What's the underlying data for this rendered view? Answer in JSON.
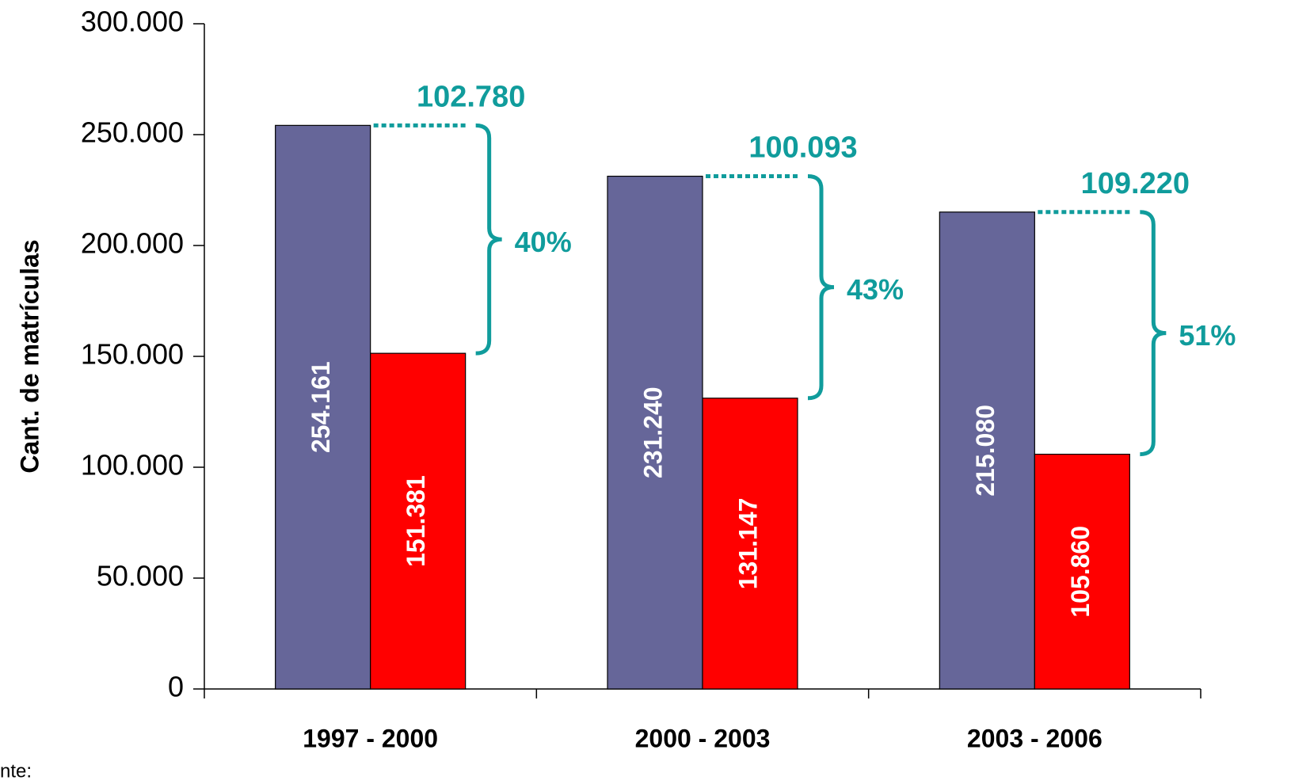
{
  "chart_data": {
    "type": "bar",
    "y_label": "Cant. de matrículas",
    "categories": [
      "1997 - 2000",
      "2000 - 2003",
      "2003 - 2006"
    ],
    "series": [
      {
        "color": "#666699",
        "values": [
          254161,
          231240,
          215080
        ],
        "value_labels": [
          "254.161",
          "231.240",
          "215.080"
        ]
      },
      {
        "color": "#ff0000",
        "values": [
          151381,
          131147,
          105860
        ],
        "value_labels": [
          "151.381",
          "131.147",
          "105.860"
        ]
      }
    ],
    "annotations": [
      {
        "difference": "102.780",
        "percent": "40%"
      },
      {
        "difference": "100.093",
        "percent": "43%"
      },
      {
        "difference": "109.220",
        "percent": "51%"
      }
    ],
    "annotation_color": "#109c9c",
    "ylim": [
      0,
      300000
    ],
    "yticks": [
      0,
      {
        "value": 50000,
        "label": "50.000"
      },
      {
        "value": 100000,
        "label": "100.000"
      },
      {
        "value": 150000,
        "label": "150.000"
      },
      {
        "value": 200000,
        "label": "200.000"
      },
      {
        "value": 250000,
        "label": "250.000"
      },
      {
        "value": 300000,
        "label": "300.000"
      }
    ],
    "footnote": "nte:"
  }
}
